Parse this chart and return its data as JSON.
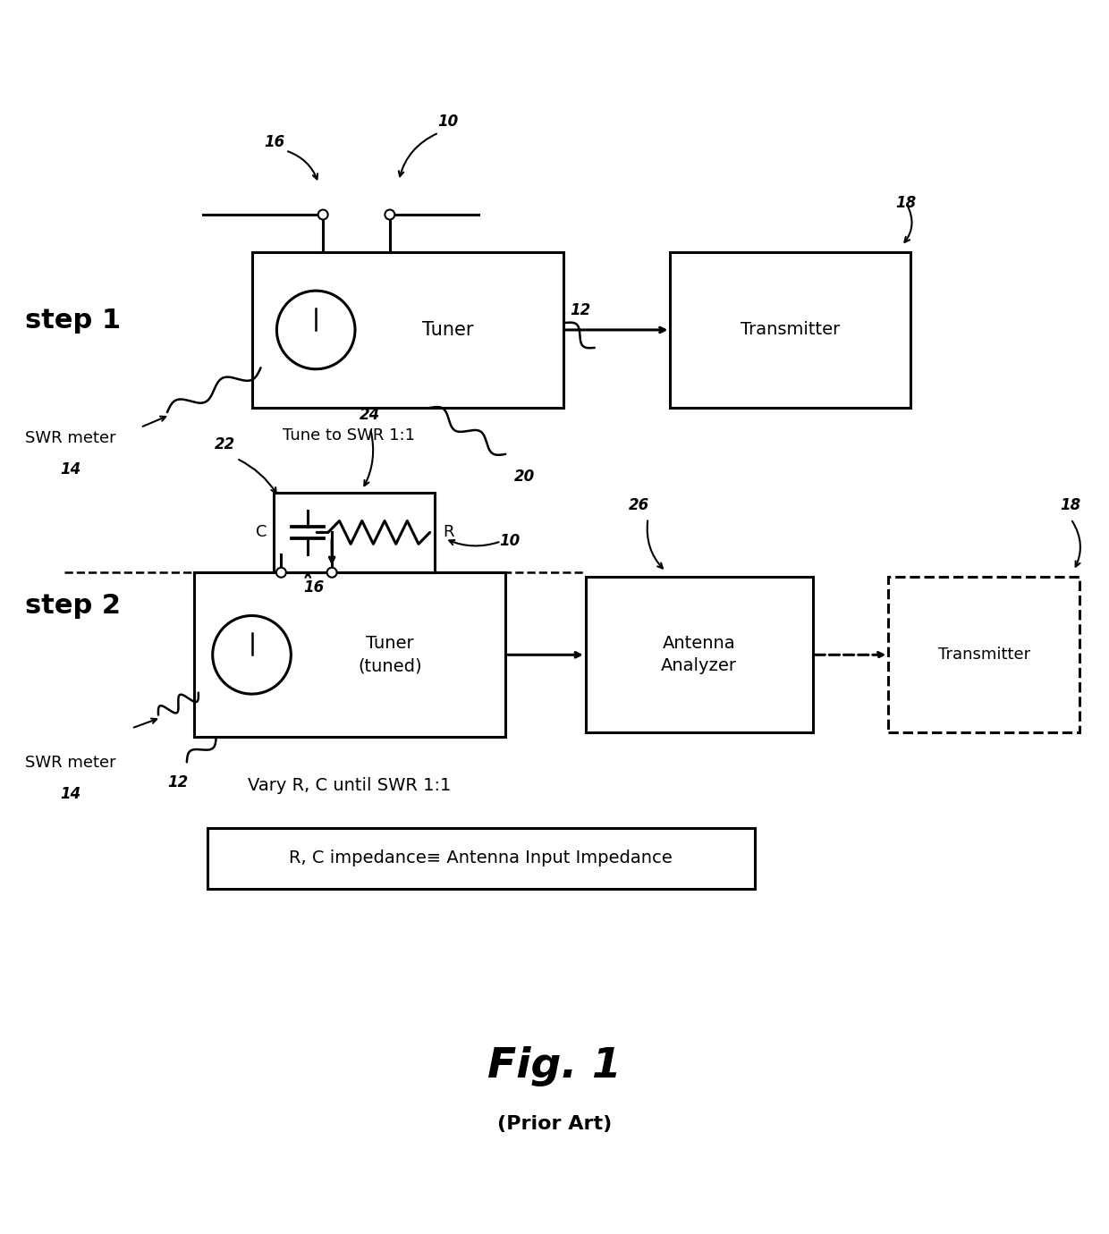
{
  "bg_color": "#ffffff",
  "line_color": "#000000",
  "fig_title": "Fig. 1",
  "fig_subtitle": "(Prior Art)",
  "step1_label": "step 1",
  "step2_label": "step 2",
  "swr_meter_label": "SWR meter",
  "swr_meter_num": "14",
  "tune_label": "Tune to SWR 1:1",
  "tuner_label": "Tuner",
  "tuner_tuned_label": "Tuner\n(tuned)",
  "transmitter_label": "Transmitter",
  "antenna_analyzer_label": "Antenna\nAnalyzer",
  "vary_label": "Vary R, C until SWR 1:1",
  "impedance_label": "R, C impedance≡ Antenna Input Impedance",
  "num_10": "10",
  "num_12_1": "12",
  "num_12_2": "12",
  "num_16_1": "16",
  "num_16_2": "16",
  "num_18_1": "18",
  "num_18_2": "18",
  "num_20": "20",
  "num_22": "22",
  "num_24": "24",
  "num_26": "26",
  "R_label": "R",
  "C_label": "C"
}
